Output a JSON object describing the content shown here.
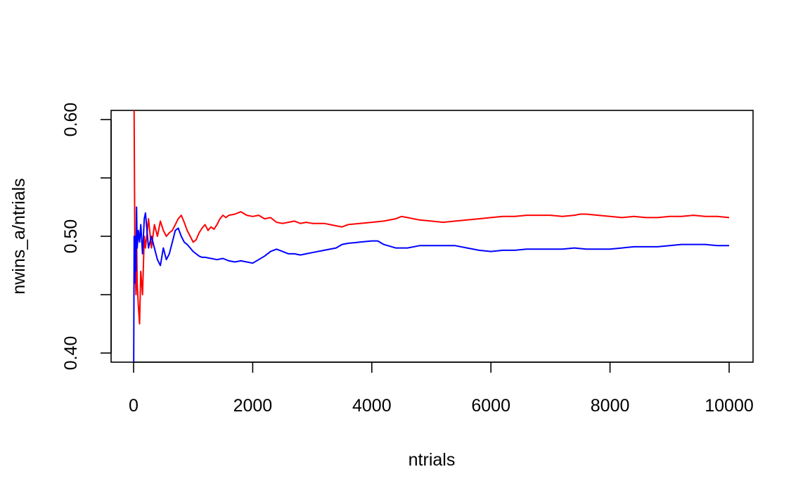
{
  "chart_data": {
    "type": "line",
    "title": "",
    "xlabel": "ntrials",
    "ylabel": "nwins_a/ntrials",
    "xlim": [
      0,
      10000
    ],
    "ylim": [
      0.4,
      0.6
    ],
    "x_ticks": [
      0,
      2000,
      4000,
      6000,
      8000,
      10000
    ],
    "x_tick_labels": [
      "0",
      "2000",
      "4000",
      "6000",
      "8000",
      "10000"
    ],
    "y_ticks": [
      0.4,
      0.45,
      0.5,
      0.55,
      0.6
    ],
    "y_tick_labels": [
      "0.40",
      "",
      "0.50",
      "",
      "0.60"
    ],
    "grid": false,
    "legend": "none",
    "series": [
      {
        "color": "#ff0000",
        "x": [
          1,
          10,
          20,
          30,
          40,
          50,
          60,
          80,
          100,
          120,
          150,
          180,
          200,
          250,
          300,
          350,
          400,
          450,
          500,
          550,
          600,
          650,
          700,
          750,
          800,
          850,
          900,
          950,
          1000,
          1050,
          1100,
          1150,
          1200,
          1250,
          1300,
          1350,
          1400,
          1450,
          1500,
          1550,
          1600,
          1700,
          1800,
          1900,
          2000,
          2100,
          2200,
          2300,
          2400,
          2500,
          2600,
          2700,
          2800,
          2900,
          3000,
          3200,
          3400,
          3500,
          3600,
          3800,
          4000,
          4200,
          4400,
          4500,
          4600,
          4800,
          5000,
          5200,
          5400,
          5600,
          5800,
          6000,
          6200,
          6400,
          6600,
          6800,
          7000,
          7200,
          7400,
          7500,
          7600,
          7800,
          8000,
          8200,
          8400,
          8600,
          8800,
          9000,
          9200,
          9400,
          9600,
          9800,
          10000
        ],
        "y": [
          0.65,
          0.6,
          0.5,
          0.47,
          0.45,
          0.5,
          0.46,
          0.44,
          0.425,
          0.47,
          0.45,
          0.5,
          0.49,
          0.515,
          0.49,
          0.51,
          0.5,
          0.513,
          0.505,
          0.5,
          0.503,
          0.505,
          0.51,
          0.515,
          0.518,
          0.512,
          0.505,
          0.5,
          0.495,
          0.497,
          0.503,
          0.507,
          0.51,
          0.505,
          0.508,
          0.506,
          0.51,
          0.515,
          0.518,
          0.516,
          0.518,
          0.519,
          0.521,
          0.518,
          0.517,
          0.518,
          0.515,
          0.516,
          0.512,
          0.511,
          0.512,
          0.513,
          0.511,
          0.512,
          0.511,
          0.511,
          0.509,
          0.508,
          0.51,
          0.511,
          0.512,
          0.513,
          0.515,
          0.517,
          0.516,
          0.514,
          0.513,
          0.512,
          0.513,
          0.514,
          0.515,
          0.516,
          0.517,
          0.517,
          0.518,
          0.518,
          0.518,
          0.517,
          0.518,
          0.519,
          0.519,
          0.518,
          0.517,
          0.516,
          0.517,
          0.516,
          0.516,
          0.517,
          0.517,
          0.518,
          0.517,
          0.517,
          0.516
        ]
      },
      {
        "color": "#0000ff",
        "x": [
          1,
          10,
          20,
          30,
          40,
          50,
          60,
          80,
          100,
          120,
          150,
          180,
          200,
          250,
          300,
          350,
          400,
          450,
          500,
          550,
          600,
          650,
          700,
          750,
          800,
          850,
          900,
          950,
          1000,
          1050,
          1100,
          1150,
          1200,
          1300,
          1400,
          1500,
          1600,
          1700,
          1800,
          1900,
          2000,
          2100,
          2200,
          2300,
          2400,
          2500,
          2600,
          2700,
          2800,
          2900,
          3000,
          3200,
          3400,
          3500,
          3600,
          3800,
          4000,
          4100,
          4200,
          4400,
          4500,
          4600,
          4800,
          5000,
          5200,
          5400,
          5600,
          5800,
          6000,
          6200,
          6400,
          6600,
          6800,
          7000,
          7200,
          7400,
          7600,
          7800,
          8000,
          8200,
          8400,
          8600,
          8800,
          9000,
          9200,
          9400,
          9600,
          9800,
          10000
        ],
        "y": [
          0.38,
          0.5,
          0.46,
          0.5,
          0.47,
          0.525,
          0.49,
          0.505,
          0.495,
          0.51,
          0.485,
          0.515,
          0.52,
          0.49,
          0.5,
          0.49,
          0.48,
          0.475,
          0.49,
          0.48,
          0.485,
          0.495,
          0.505,
          0.507,
          0.5,
          0.495,
          0.493,
          0.49,
          0.487,
          0.485,
          0.483,
          0.482,
          0.482,
          0.481,
          0.48,
          0.481,
          0.479,
          0.478,
          0.479,
          0.478,
          0.477,
          0.48,
          0.483,
          0.487,
          0.489,
          0.487,
          0.485,
          0.485,
          0.484,
          0.485,
          0.486,
          0.488,
          0.49,
          0.493,
          0.494,
          0.495,
          0.496,
          0.496,
          0.493,
          0.49,
          0.49,
          0.49,
          0.492,
          0.492,
          0.492,
          0.492,
          0.49,
          0.488,
          0.487,
          0.488,
          0.488,
          0.489,
          0.489,
          0.489,
          0.489,
          0.49,
          0.489,
          0.489,
          0.489,
          0.49,
          0.491,
          0.491,
          0.491,
          0.492,
          0.493,
          0.493,
          0.493,
          0.492,
          0.492
        ]
      }
    ]
  }
}
